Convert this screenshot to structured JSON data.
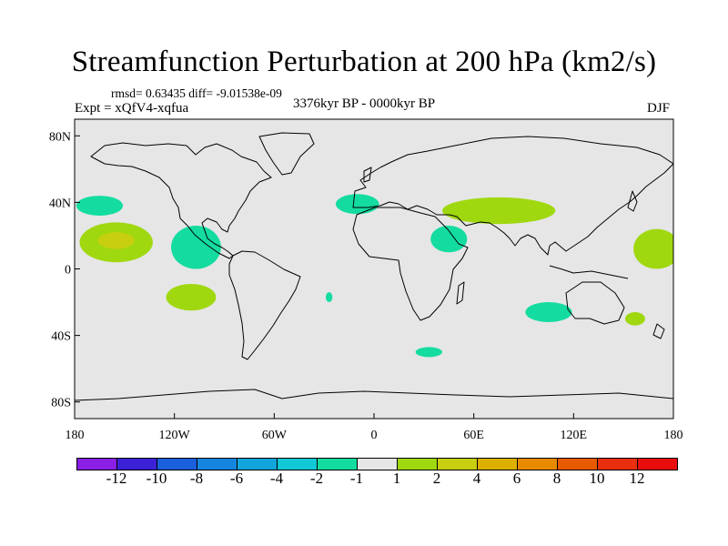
{
  "title": "Streamfunction Perturbation at 200 hPa (km2/s)",
  "stats": "rmsd= 0.63435 diff= -9.01538e-09",
  "experiment": "Expt = xQfV4-xqfua",
  "period": "3376kyr BP - 0000kyr BP",
  "season": "DJF",
  "axes": {
    "y_ticks": [
      "80N",
      "40N",
      "0",
      "40S",
      "80S"
    ],
    "x_ticks": [
      "180",
      "120W",
      "60W",
      "0",
      "60E",
      "120E",
      "180"
    ]
  },
  "colorbar": {
    "labels": [
      "-12",
      "-10",
      "-8",
      "-6",
      "-4",
      "-2",
      "-1",
      "1",
      "2",
      "4",
      "6",
      "8",
      "10",
      "12"
    ],
    "colors": [
      "#8a1fe6",
      "#3b22d6",
      "#1a5fdc",
      "#1586e0",
      "#12a5dc",
      "#10c8d6",
      "#14dca0",
      "#e6e6e6",
      "#a0d810",
      "#c8cf10",
      "#dcb000",
      "#e88a00",
      "#e85a00",
      "#e83010",
      "#e80c0c"
    ]
  },
  "map": {
    "background": "#e6e6e6",
    "regions": [
      {
        "name": "north-pacific-west-anomaly",
        "level": "-1",
        "color": "#14dca0",
        "lon": -165,
        "lat": 38,
        "rlon": 14,
        "rlat": 6
      },
      {
        "name": "central-pacific-anomaly",
        "level": "1",
        "color": "#a0d810",
        "lon": -155,
        "lat": 16,
        "rlon": 22,
        "rlat": 12
      },
      {
        "name": "central-pacific-core",
        "level": "2",
        "color": "#c8cf10",
        "lon": -155,
        "lat": 17,
        "rlon": 11,
        "rlat": 5
      },
      {
        "name": "central-america-anomaly",
        "level": "-1",
        "color": "#14dca0",
        "lon": -107,
        "lat": 13,
        "rlon": 15,
        "rlat": 13
      },
      {
        "name": "southeast-pacific-anomaly",
        "level": "1",
        "color": "#a0d810",
        "lon": -110,
        "lat": -17,
        "rlon": 15,
        "rlat": 8
      },
      {
        "name": "north-atlantic-anomaly",
        "level": "-1",
        "color": "#14dca0",
        "lon": -10,
        "lat": 39,
        "rlon": 13,
        "rlat": 6
      },
      {
        "name": "central-asia-anomaly",
        "level": "1",
        "color": "#a0d810",
        "lon": 75,
        "lat": 35,
        "rlon": 34,
        "rlat": 8
      },
      {
        "name": "middle-east-anomaly",
        "level": "-1",
        "color": "#14dca0",
        "lon": 45,
        "lat": 18,
        "rlon": 11,
        "rlat": 8
      },
      {
        "name": "west-pacific-anomaly",
        "level": "1",
        "color": "#a0d810",
        "lon": 170,
        "lat": 12,
        "rlon": 14,
        "rlat": 12
      },
      {
        "name": "south-indian-anomaly",
        "level": "-1",
        "color": "#14dca0",
        "lon": 105,
        "lat": -26,
        "rlon": 14,
        "rlat": 6
      },
      {
        "name": "south-australia-anomaly",
        "level": "1",
        "color": "#a0d810",
        "lon": 157,
        "lat": -30,
        "rlon": 6,
        "rlat": 4
      },
      {
        "name": "south-atlantic-anomaly",
        "level": "-1",
        "color": "#14dca0",
        "lon": -27,
        "lat": -17,
        "rlon": 2,
        "rlat": 3
      },
      {
        "name": "southern-ocean-anomaly",
        "level": "-1",
        "color": "#14dca0",
        "lon": 33,
        "lat": -50,
        "rlon": 8,
        "rlat": 3
      }
    ]
  }
}
